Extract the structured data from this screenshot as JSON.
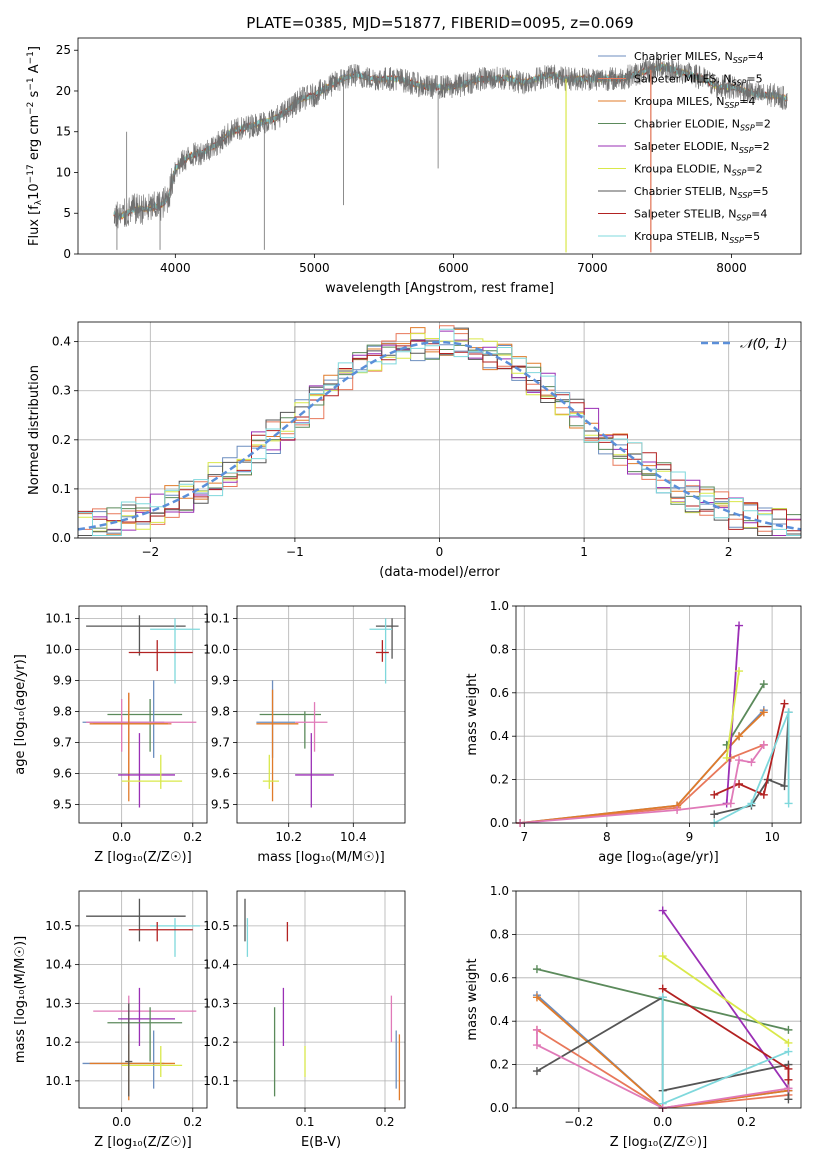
{
  "figure_title": "PLATE=0385, MJD=51877, FIBERID=0095, z=0.069",
  "colors": {
    "Chabrier MILES": "#6c8ebf",
    "Salpeter MILES": "#e8785a",
    "Kroupa MILES": "#e07b2a",
    "Chabrier ELODIE": "#5b8a5b",
    "Salpeter ELODIE": "#9a2fb5",
    "Kroupa ELODIE": "#d9e84a",
    "Chabrier STELIB": "#555555",
    "Salpeter STELIB": "#b22222",
    "Kroupa STELIB": "#7fd8dc",
    "pink": "#e07ab8",
    "normal_curve": "#5b8fd9"
  },
  "chart_data": [
    {
      "id": "spectrum",
      "type": "line",
      "title": "PLATE=0385, MJD=51877, FIBERID=0095, z=0.069",
      "xlabel": "wavelength [Angstrom, rest frame]",
      "ylabel_parts": [
        "Flux [f",
        "λ",
        "10",
        "−17",
        " erg cm",
        "−2",
        " s",
        "−1",
        " A",
        "−1",
        "]"
      ],
      "xlim": [
        3300,
        8500
      ],
      "ylim": [
        0,
        26.5
      ],
      "xticks": [
        4000,
        5000,
        6000,
        7000,
        8000
      ],
      "yticks": [
        0,
        5,
        10,
        15,
        20,
        25
      ],
      "legend_position": "top-right",
      "legend": [
        {
          "label": "Chabrier MILES, N",
          "sub": "SSP",
          "suffix": "=4",
          "color": "#6c8ebf"
        },
        {
          "label": "Salpeter MILES, N",
          "sub": "SSP",
          "suffix": "=5",
          "color": "#e8785a"
        },
        {
          "label": "Kroupa MILES, N",
          "sub": "SSP",
          "suffix": "=4",
          "color": "#e07b2a"
        },
        {
          "label": "Chabrier ELODIE, N",
          "sub": "SSP",
          "suffix": "=2",
          "color": "#5b8a5b"
        },
        {
          "label": "Salpeter ELODIE, N",
          "sub": "SSP",
          "suffix": "=2",
          "color": "#9a2fb5"
        },
        {
          "label": "Kroupa ELODIE, N",
          "sub": "SSP",
          "suffix": "=2",
          "color": "#d9e84a"
        },
        {
          "label": "Chabrier STELIB, N",
          "sub": "SSP",
          "suffix": "=5",
          "color": "#555555"
        },
        {
          "label": "Salpeter STELIB, N",
          "sub": "SSP",
          "suffix": "=4",
          "color": "#b22222"
        },
        {
          "label": "Kroupa STELIB, N",
          "sub": "SSP",
          "suffix": "=5",
          "color": "#7fd8dc"
        }
      ],
      "continuum": {
        "x": [
          3550,
          3600,
          3700,
          3800,
          3900,
          3950,
          4000,
          4100,
          4200,
          4300,
          4400,
          4500,
          4600,
          4700,
          4800,
          4900,
          5000,
          5100,
          5200,
          5300,
          5400,
          5500,
          5600,
          5700,
          5800,
          5900,
          6000,
          6100,
          6200,
          6300,
          6400,
          6500,
          6600,
          6700,
          6800,
          6900,
          7000,
          7100,
          7200,
          7300,
          7400,
          7500,
          7600,
          7700,
          7800,
          7900,
          8000,
          8100,
          8200,
          8300,
          8400
        ],
        "y": [
          5.0,
          4.5,
          5.5,
          5.5,
          6.0,
          7.0,
          10.5,
          12.0,
          12.5,
          13.5,
          15.0,
          15.5,
          16.0,
          16.5,
          17.5,
          19.0,
          19.5,
          20.5,
          21.5,
          22.0,
          21.5,
          21.5,
          21.5,
          21.0,
          20.5,
          20.5,
          20.5,
          21.0,
          21.5,
          21.5,
          21.5,
          21.0,
          21.5,
          22.0,
          21.5,
          21.5,
          21.5,
          21.5,
          21.5,
          22.0,
          22.5,
          23.0,
          22.5,
          22.0,
          21.5,
          20.5,
          20.5,
          20.0,
          19.5,
          19.5,
          19.0
        ]
      },
      "absorption_spikes": [
        {
          "x": 3580,
          "y": 0.5
        },
        {
          "x": 3650,
          "y": 15.0
        },
        {
          "x": 3890,
          "y": 0.5
        },
        {
          "x": 4640,
          "y": 0.5
        },
        {
          "x": 5210,
          "y": 6.0
        },
        {
          "x": 5890,
          "y": 10.5
        },
        {
          "x": 6810,
          "y": 0.5
        },
        {
          "x": 7420,
          "y": 0.5
        }
      ]
    },
    {
      "id": "residuals",
      "type": "histogram",
      "xlabel": "(data-model)/error",
      "ylabel": "Normed distribution",
      "xlim": [
        -2.5,
        2.5
      ],
      "ylim": [
        0,
        0.44
      ],
      "xticks": [
        -2,
        -1,
        0,
        1,
        2
      ],
      "yticks": [
        0.0,
        0.1,
        0.2,
        0.3,
        0.4
      ],
      "legend_position": "top-right",
      "legend_label": "𝒩(0, 1)",
      "bin_width": 0.1,
      "series_names": [
        "Chabrier MILES",
        "Salpeter MILES",
        "Kroupa MILES",
        "Chabrier ELODIE",
        "Salpeter ELODIE",
        "Kroupa ELODIE",
        "Chabrier STELIB",
        "Salpeter STELIB",
        "Kroupa STELIB"
      ],
      "gaussian": {
        "mean": 0,
        "sigma": 1
      }
    },
    {
      "id": "age-vs-Z",
      "type": "errorbar",
      "xlabel": "Z [log₁₀(Z/Z☉)]",
      "ylabel": "age  [log₁₀(age/yr)]",
      "xlim": [
        -0.12,
        0.24
      ],
      "ylim": [
        9.44,
        10.14
      ],
      "xticks": [
        0.0,
        0.2
      ],
      "yticks": [
        9.5,
        9.6,
        9.7,
        9.8,
        9.9,
        10.0,
        10.1
      ],
      "points": [
        {
          "series": "Chabrier STELIB",
          "x": 0.05,
          "y": 10.075,
          "xlo": -0.1,
          "xhi": 0.18,
          "ylo": 9.98,
          "yhi": 10.11
        },
        {
          "series": "Kroupa STELIB",
          "x": 0.15,
          "y": 10.065,
          "xlo": 0.08,
          "xhi": 0.22,
          "ylo": 9.89,
          "yhi": 10.1
        },
        {
          "series": "Salpeter STELIB",
          "x": 0.1,
          "y": 9.99,
          "xlo": 0.02,
          "xhi": 0.2,
          "ylo": 9.93,
          "yhi": 10.03
        },
        {
          "series": "Chabrier ELODIE",
          "x": 0.08,
          "y": 9.79,
          "xlo": -0.04,
          "xhi": 0.17,
          "ylo": 9.67,
          "yhi": 9.84
        },
        {
          "series": "Chabrier MILES",
          "x": 0.09,
          "y": 9.765,
          "xlo": -0.11,
          "xhi": 0.12,
          "ylo": 9.65,
          "yhi": 9.9
        },
        {
          "series": "pink",
          "x": 0.0,
          "y": 9.765,
          "xlo": -0.1,
          "xhi": 0.21,
          "ylo": 9.67,
          "yhi": 9.84
        },
        {
          "series": "Salpeter MILES",
          "x": 0.02,
          "y": 9.76,
          "xlo": -0.08,
          "xhi": 0.14,
          "ylo": 9.58,
          "yhi": 9.86
        },
        {
          "series": "Kroupa MILES",
          "x": 0.02,
          "y": 9.76,
          "xlo": -0.09,
          "xhi": 0.13,
          "ylo": 9.51,
          "yhi": 9.86
        },
        {
          "series": "Salpeter ELODIE",
          "x": 0.05,
          "y": 9.595,
          "xlo": -0.01,
          "xhi": 0.15,
          "ylo": 9.49,
          "yhi": 9.73
        },
        {
          "series": "Kroupa ELODIE",
          "x": 0.11,
          "y": 9.575,
          "xlo": 0.0,
          "xhi": 0.17,
          "ylo": 9.55,
          "yhi": 9.66
        }
      ]
    },
    {
      "id": "age-vs-mass",
      "type": "errorbar",
      "xlabel": "mass [log₁₀(M/M☉)]",
      "ylabel": "",
      "xlim": [
        10.04,
        10.56
      ],
      "ylim": [
        9.44,
        10.14
      ],
      "xticks": [
        10.2,
        10.4
      ],
      "yticks": [
        9.5,
        9.6,
        9.7,
        9.8,
        9.9,
        10.0,
        10.1
      ],
      "points": [
        {
          "series": "Chabrier STELIB",
          "x": 10.52,
          "y": 10.075,
          "xlo": 10.47,
          "xhi": 10.54,
          "ylo": 9.97,
          "yhi": 10.1
        },
        {
          "series": "Kroupa STELIB",
          "x": 10.5,
          "y": 10.065,
          "xlo": 10.45,
          "xhi": 10.52,
          "ylo": 9.89,
          "yhi": 10.1
        },
        {
          "series": "Salpeter STELIB",
          "x": 10.49,
          "y": 9.99,
          "xlo": 10.47,
          "xhi": 10.51,
          "ylo": 9.96,
          "yhi": 10.03
        },
        {
          "series": "Chabrier ELODIE",
          "x": 10.25,
          "y": 9.79,
          "xlo": 10.11,
          "xhi": 10.3,
          "ylo": 9.68,
          "yhi": 9.8
        },
        {
          "series": "Chabrier MILES",
          "x": 10.15,
          "y": 9.765,
          "xlo": 10.1,
          "xhi": 10.22,
          "ylo": 9.65,
          "yhi": 9.9
        },
        {
          "series": "pink",
          "x": 10.28,
          "y": 9.765,
          "xlo": 10.22,
          "xhi": 10.32,
          "ylo": 9.67,
          "yhi": 9.83
        },
        {
          "series": "Kroupa MILES",
          "x": 10.15,
          "y": 9.76,
          "xlo": 10.1,
          "xhi": 10.23,
          "ylo": 9.51,
          "yhi": 9.87
        },
        {
          "series": "Salpeter ELODIE",
          "x": 10.27,
          "y": 9.595,
          "xlo": 10.22,
          "xhi": 10.34,
          "ylo": 9.49,
          "yhi": 9.73
        },
        {
          "series": "Kroupa ELODIE",
          "x": 10.14,
          "y": 9.575,
          "xlo": 10.12,
          "xhi": 10.17,
          "ylo": 9.55,
          "yhi": 9.66
        }
      ]
    },
    {
      "id": "massweight-vs-age",
      "type": "line",
      "xlabel": "age  [log₁₀(age/yr)]",
      "ylabel": "mass weight",
      "xlim": [
        6.9,
        10.35
      ],
      "ylim": [
        0,
        1.0
      ],
      "xticks": [
        7,
        8,
        9,
        10
      ],
      "yticks": [
        0.0,
        0.2,
        0.4,
        0.6,
        0.8,
        1.0
      ],
      "series": [
        {
          "name": "Chabrier MILES",
          "x": [
            6.95,
            8.85,
            9.6,
            9.9
          ],
          "y": [
            0.0,
            0.08,
            0.4,
            0.52
          ]
        },
        {
          "name": "Salpeter MILES",
          "x": [
            6.95,
            8.85,
            9.5,
            9.9
          ],
          "y": [
            0.0,
            0.07,
            0.3,
            0.36
          ]
        },
        {
          "name": "Kroupa MILES",
          "x": [
            6.95,
            8.85,
            9.6,
            9.9
          ],
          "y": [
            0.0,
            0.08,
            0.4,
            0.51
          ]
        },
        {
          "name": "Chabrier ELODIE",
          "x": [
            9.45,
            9.9
          ],
          "y": [
            0.36,
            0.64
          ]
        },
        {
          "name": "Salpeter ELODIE",
          "x": [
            9.45,
            9.6
          ],
          "y": [
            0.09,
            0.91
          ]
        },
        {
          "name": "Kroupa ELODIE",
          "x": [
            9.45,
            9.6
          ],
          "y": [
            0.3,
            0.7
          ]
        },
        {
          "name": "Chabrier STELIB",
          "x": [
            9.3,
            9.75,
            9.95,
            10.15,
            10.2
          ],
          "y": [
            0.04,
            0.08,
            0.2,
            0.17,
            0.51
          ]
        },
        {
          "name": "Salpeter STELIB",
          "x": [
            9.3,
            9.6,
            9.9,
            10.15
          ],
          "y": [
            0.13,
            0.18,
            0.13,
            0.55
          ]
        },
        {
          "name": "Kroupa STELIB",
          "x": [
            9.3,
            9.75,
            10.2,
            10.2
          ],
          "y": [
            0.0,
            0.09,
            0.51,
            0.09
          ]
        },
        {
          "name": "pink",
          "x": [
            6.95,
            8.85,
            9.5,
            9.6,
            9.75,
            9.9
          ],
          "y": [
            0.0,
            0.06,
            0.09,
            0.29,
            0.28,
            0.36
          ]
        }
      ]
    },
    {
      "id": "mass-vs-Z",
      "type": "errorbar",
      "xlabel": "Z [log₁₀(Z/Z☉)]",
      "ylabel": "mass [log₁₀(M/M☉)]",
      "xlim": [
        -0.12,
        0.24
      ],
      "ylim": [
        10.03,
        10.59
      ],
      "xticks": [
        0.0,
        0.2
      ],
      "yticks": [
        10.1,
        10.2,
        10.3,
        10.4,
        10.5
      ],
      "points": [
        {
          "series": "Chabrier STELIB",
          "x": 0.05,
          "y": 10.525,
          "xlo": -0.1,
          "xhi": 0.18,
          "ylo": 10.46,
          "yhi": 10.57
        },
        {
          "series": "Kroupa STELIB",
          "x": 0.15,
          "y": 10.5,
          "xlo": 0.08,
          "xhi": 0.22,
          "ylo": 10.42,
          "yhi": 10.52
        },
        {
          "series": "Salpeter STELIB",
          "x": 0.1,
          "y": 10.49,
          "xlo": 0.02,
          "xhi": 0.2,
          "ylo": 10.46,
          "yhi": 10.51
        },
        {
          "series": "pink",
          "x": 0.02,
          "y": 10.28,
          "xlo": -0.08,
          "xhi": 0.21,
          "ylo": 10.2,
          "yhi": 10.32
        },
        {
          "series": "Salpeter ELODIE",
          "x": 0.05,
          "y": 10.26,
          "xlo": -0.01,
          "xhi": 0.15,
          "ylo": 10.19,
          "yhi": 10.34
        },
        {
          "series": "Chabrier ELODIE",
          "x": 0.08,
          "y": 10.25,
          "xlo": -0.04,
          "xhi": 0.17,
          "ylo": 10.15,
          "yhi": 10.29
        },
        {
          "series": "Chabrier MILES",
          "x": 0.09,
          "y": 10.145,
          "xlo": -0.11,
          "xhi": 0.12,
          "ylo": 10.08,
          "yhi": 10.23
        },
        {
          "series": "Kroupa MILES",
          "x": 0.02,
          "y": 10.145,
          "xlo": -0.09,
          "xhi": 0.15,
          "ylo": 10.05,
          "yhi": 10.22
        },
        {
          "series": "Kroupa ELODIE",
          "x": 0.11,
          "y": 10.14,
          "xlo": 0.0,
          "xhi": 0.17,
          "ylo": 10.11,
          "yhi": 10.19
        },
        {
          "series": "Chabrier STELIB",
          "x": 0.02,
          "y": 10.15,
          "xlo": 0.01,
          "xhi": 0.03,
          "ylo": 10.06,
          "yhi": 10.3
        }
      ]
    },
    {
      "id": "mass-vs-EBV",
      "type": "errorbar",
      "xlabel": "E(B-V)",
      "ylabel": "",
      "xlim": [
        0.015,
        0.225
      ],
      "ylim": [
        10.03,
        10.59
      ],
      "xticks": [
        0.1,
        0.2
      ],
      "yticks": [
        10.1,
        10.2,
        10.3,
        10.4,
        10.5
      ],
      "points": [
        {
          "series": "Chabrier STELIB",
          "x": 0.025,
          "y": 10.525,
          "ylo": 10.46,
          "yhi": 10.57
        },
        {
          "series": "Kroupa STELIB",
          "x": 0.028,
          "y": 10.5,
          "ylo": 10.42,
          "yhi": 10.52
        },
        {
          "series": "Salpeter STELIB",
          "x": 0.078,
          "y": 10.49,
          "ylo": 10.46,
          "yhi": 10.51
        },
        {
          "series": "Salpeter ELODIE",
          "x": 0.073,
          "y": 10.26,
          "ylo": 10.19,
          "yhi": 10.34
        },
        {
          "series": "Chabrier ELODIE",
          "x": 0.062,
          "y": 10.25,
          "ylo": 10.06,
          "yhi": 10.29
        },
        {
          "series": "Kroupa ELODIE",
          "x": 0.1,
          "y": 10.14,
          "ylo": 10.11,
          "yhi": 10.19
        },
        {
          "series": "pink",
          "x": 0.208,
          "y": 10.28,
          "ylo": 10.2,
          "yhi": 10.32
        },
        {
          "series": "Chabrier MILES",
          "x": 0.214,
          "y": 10.145,
          "ylo": 10.08,
          "yhi": 10.23
        },
        {
          "series": "Kroupa MILES",
          "x": 0.218,
          "y": 10.145,
          "ylo": 10.05,
          "yhi": 10.22
        }
      ]
    },
    {
      "id": "massweight-vs-Z",
      "type": "line",
      "xlabel": "Z [log₁₀(Z/Z☉)]",
      "ylabel": "mass weight",
      "xlim": [
        -0.35,
        0.33
      ],
      "ylim": [
        0,
        1.0
      ],
      "xticks": [
        -0.2,
        0.0,
        0.2
      ],
      "yticks": [
        0.0,
        0.2,
        0.4,
        0.6,
        0.8,
        1.0
      ],
      "series": [
        {
          "name": "Chabrier MILES",
          "x": [
            -0.3,
            0.0,
            0.3
          ],
          "y": [
            0.52,
            0.0,
            0.08
          ]
        },
        {
          "name": "Salpeter MILES",
          "x": [
            -0.3,
            0.0,
            0.3
          ],
          "y": [
            0.36,
            0.0,
            0.06
          ]
        },
        {
          "name": "Kroupa MILES",
          "x": [
            -0.3,
            0.0,
            0.3
          ],
          "y": [
            0.51,
            0.0,
            0.08
          ]
        },
        {
          "name": "Chabrier ELODIE",
          "x": [
            -0.3,
            0.3
          ],
          "y": [
            0.64,
            0.36
          ]
        },
        {
          "name": "Salpeter ELODIE",
          "x": [
            0.0,
            0.3
          ],
          "y": [
            0.91,
            0.09
          ]
        },
        {
          "name": "Kroupa ELODIE",
          "x": [
            0.0,
            0.3
          ],
          "y": [
            0.7,
            0.3
          ]
        },
        {
          "name": "Chabrier STELIB",
          "x": [
            -0.3,
            0.0,
            0.0,
            0.3,
            0.3
          ],
          "y": [
            0.17,
            0.51,
            0.08,
            0.2,
            0.04
          ]
        },
        {
          "name": "Salpeter STELIB",
          "x": [
            0.0,
            0.3,
            0.3
          ],
          "y": [
            0.55,
            0.18,
            0.13
          ]
        },
        {
          "name": "Kroupa STELIB",
          "x": [
            0.0,
            0.0,
            0.3
          ],
          "y": [
            0.51,
            0.02,
            0.26
          ]
        },
        {
          "name": "pink",
          "x": [
            -0.3,
            -0.3,
            0.0,
            0.3
          ],
          "y": [
            0.36,
            0.29,
            0.0,
            0.09
          ]
        }
      ]
    }
  ]
}
